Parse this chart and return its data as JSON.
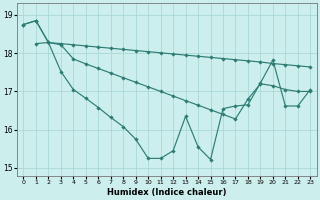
{
  "xlabel": "Humidex (Indice chaleur)",
  "background_color": "#cceeed",
  "grid_color": "#aad8d6",
  "line_color": "#2e7d74",
  "xlim": [
    -0.5,
    23.5
  ],
  "ylim": [
    14.8,
    19.3
  ],
  "yticks": [
    15,
    16,
    17,
    18,
    19
  ],
  "xticks": [
    0,
    1,
    2,
    3,
    4,
    5,
    6,
    7,
    8,
    9,
    10,
    11,
    12,
    13,
    14,
    15,
    16,
    17,
    18,
    19,
    20,
    21,
    22,
    23
  ],
  "line1_x": [
    0,
    1,
    2,
    3,
    4,
    5,
    6,
    7,
    8,
    9,
    10,
    11,
    12,
    13,
    14,
    15,
    16,
    17,
    18,
    19,
    20,
    21,
    22,
    23
  ],
  "line1_y": [
    18.75,
    18.85,
    18.28,
    18.25,
    18.22,
    18.19,
    18.16,
    18.13,
    18.1,
    18.07,
    18.04,
    18.01,
    17.98,
    17.95,
    17.92,
    17.89,
    17.86,
    17.83,
    17.8,
    17.77,
    17.73,
    17.7,
    17.67,
    17.64
  ],
  "line2_x": [
    0,
    1,
    2,
    3,
    4,
    5,
    6,
    7,
    8,
    9,
    10,
    11,
    12,
    13,
    14,
    15,
    16,
    17,
    18,
    19,
    20,
    21,
    22,
    23
  ],
  "line2_y": [
    18.75,
    18.85,
    18.28,
    18.22,
    17.85,
    17.72,
    17.6,
    17.48,
    17.36,
    17.24,
    17.12,
    17.0,
    16.88,
    16.76,
    16.64,
    16.52,
    16.4,
    16.28,
    16.8,
    17.2,
    17.15,
    17.05,
    17.0,
    17.0
  ],
  "line3_x": [
    1,
    2,
    3,
    4,
    5,
    6,
    7,
    8,
    9,
    10,
    11,
    12,
    13,
    14,
    15,
    16,
    17,
    18,
    19,
    20,
    21,
    22,
    23
  ],
  "line3_y": [
    18.25,
    18.28,
    17.52,
    17.05,
    16.82,
    16.58,
    16.32,
    16.08,
    15.75,
    15.25,
    15.25,
    15.45,
    16.35,
    15.55,
    15.22,
    16.55,
    16.62,
    16.65,
    17.22,
    17.82,
    16.62,
    16.62,
    17.05
  ]
}
